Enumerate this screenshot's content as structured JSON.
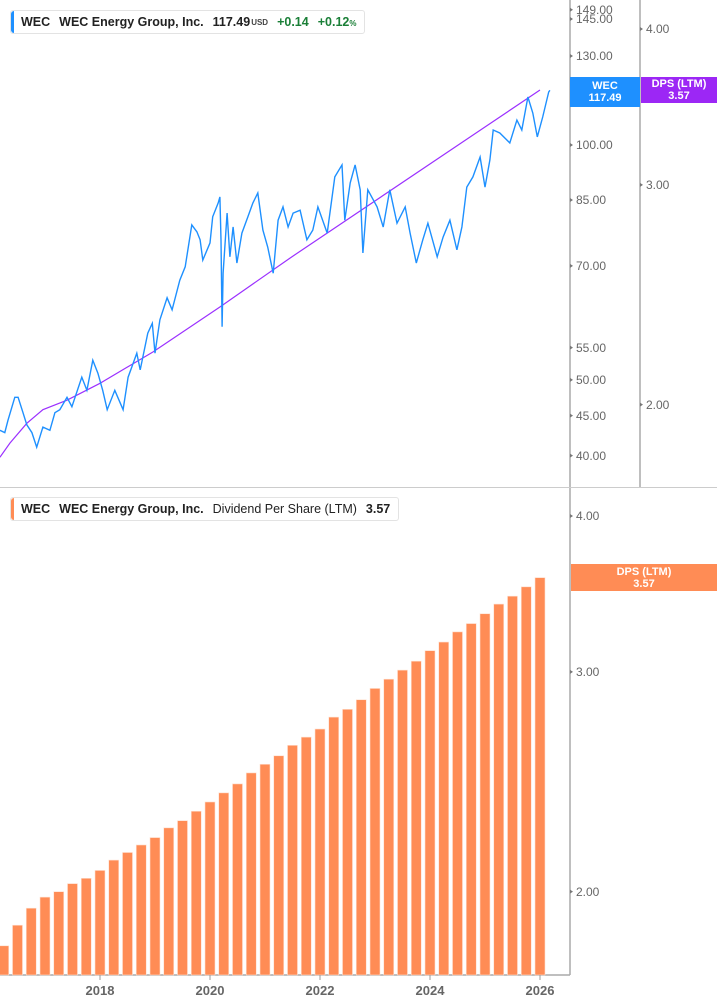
{
  "colors": {
    "price": "#1e90ff",
    "trend": "#9b30ff",
    "dps_tag": "#9c27f5",
    "bars": "#ff8c55",
    "positive": "#1a7f37"
  },
  "top_legend": {
    "ticker": "WEC",
    "name": "WEC Energy Group, Inc.",
    "price": "117.49",
    "currency": "USD",
    "change": "+0.14",
    "change_pct": "+0.12",
    "pct_sign": "%"
  },
  "bottom_legend": {
    "ticker": "WEC",
    "name": "WEC Energy Group, Inc.",
    "metric": "Dividend Per Share (LTM)",
    "value": "3.57"
  },
  "tags": {
    "price": {
      "label": "WEC",
      "value": "117.49"
    },
    "dps_top": {
      "label": "DPS (LTM)",
      "value": "3.57"
    },
    "dps_bottom": {
      "label": "DPS (LTM)",
      "value": "3.57"
    }
  },
  "chart_data": [
    {
      "type": "line",
      "scale": "log",
      "price_axis_ticks": [
        "149.00",
        "145.00",
        "130.00",
        "100.00",
        "85.00",
        "70.00",
        "55.00",
        "50.00",
        "45.00",
        "40.00"
      ],
      "dps_axis_ticks": [
        "4.00",
        "3.00",
        "2.00"
      ],
      "series": [
        {
          "name": "WEC",
          "points": [
            [
              "2016-03-06",
              43.1
            ],
            [
              "2016-04-08",
              42.8
            ],
            [
              "2016-04-29",
              44.4
            ],
            [
              "2016-06-13",
              47.5
            ],
            [
              "2016-07-05",
              47.5
            ],
            [
              "2016-08-07",
              45.4
            ],
            [
              "2016-09-02",
              43.8
            ],
            [
              "2016-10-05",
              42.8
            ],
            [
              "2016-11-07",
              41.0
            ],
            [
              "2016-12-17",
              43.5
            ],
            [
              "2017-02-03",
              43.1
            ],
            [
              "2017-03-06",
              45.4
            ],
            [
              "2017-04-08",
              45.8
            ],
            [
              "2017-05-25",
              47.5
            ],
            [
              "2017-06-27",
              46.2
            ],
            [
              "2017-09-02",
              50.4
            ],
            [
              "2017-10-05",
              48.5
            ],
            [
              "2017-11-14",
              53.0
            ],
            [
              "2017-12-17",
              51.0
            ],
            [
              "2018-01-19",
              48.5
            ],
            [
              "2018-02-18",
              45.8
            ],
            [
              "2018-04-08",
              48.5
            ],
            [
              "2018-06-02",
              45.8
            ],
            [
              "2018-07-05",
              50.4
            ],
            [
              "2018-09-02",
              54.1
            ],
            [
              "2018-09-24",
              51.5
            ],
            [
              "2018-11-14",
              57.4
            ],
            [
              "2018-12-13",
              59.1
            ],
            [
              "2019-01-01",
              54.1
            ],
            [
              "2019-02-03",
              59.7
            ],
            [
              "2019-03-20",
              63.7
            ],
            [
              "2019-04-23",
              61.5
            ],
            [
              "2019-06-13",
              67.1
            ],
            [
              "2019-07-19",
              69.8
            ],
            [
              "2019-09-02",
              79.0
            ],
            [
              "2019-10-05",
              77.4
            ],
            [
              "2019-10-26",
              75.6
            ],
            [
              "2019-11-14",
              71.2
            ],
            [
              "2020-01-01",
              74.9
            ],
            [
              "2020-01-19",
              80.9
            ],
            [
              "2020-02-25",
              84.3
            ],
            [
              "2020-03-06",
              85.8
            ],
            [
              "2020-03-13",
              75.6
            ],
            [
              "2020-03-20",
              58.5
            ],
            [
              "2020-03-27",
              68.5
            ],
            [
              "2020-04-23",
              81.8
            ],
            [
              "2020-05-11",
              71.9
            ],
            [
              "2020-06-02",
              78.5
            ],
            [
              "2020-06-27",
              70.6
            ],
            [
              "2020-07-30",
              77.1
            ],
            [
              "2020-09-09",
              80.9
            ],
            [
              "2020-10-12",
              84.3
            ],
            [
              "2020-11-14",
              86.8
            ],
            [
              "2020-12-17",
              77.8
            ],
            [
              "2021-01-19",
              74.0
            ],
            [
              "2021-02-25",
              68.5
            ],
            [
              "2021-03-27",
              80.1
            ],
            [
              "2021-04-29",
              83.3
            ],
            [
              "2021-06-02",
              78.5
            ],
            [
              "2021-07-05",
              81.8
            ],
            [
              "2021-08-21",
              82.5
            ],
            [
              "2021-10-05",
              75.6
            ],
            [
              "2021-11-14",
              77.8
            ],
            [
              "2021-12-17",
              83.3
            ],
            [
              "2022-02-18",
              77.1
            ],
            [
              "2022-04-08",
              91.0
            ],
            [
              "2022-05-25",
              94.3
            ],
            [
              "2022-06-13",
              80.1
            ],
            [
              "2022-07-19",
              89.4
            ],
            [
              "2022-08-21",
              94.3
            ],
            [
              "2022-09-24",
              87.6
            ],
            [
              "2022-10-12",
              72.7
            ],
            [
              "2022-11-14",
              87.6
            ],
            [
              "2023-01-15",
              83.3
            ],
            [
              "2023-02-25",
              78.5
            ],
            [
              "2023-04-08",
              87.6
            ],
            [
              "2023-05-25",
              79.4
            ],
            [
              "2023-07-19",
              83.3
            ],
            [
              "2023-08-21",
              77.1
            ],
            [
              "2023-10-01",
              70.6
            ],
            [
              "2023-11-14",
              75.6
            ],
            [
              "2023-12-17",
              79.4
            ],
            [
              "2024-02-18",
              71.9
            ],
            [
              "2024-03-27",
              76.2
            ],
            [
              "2024-05-11",
              80.1
            ],
            [
              "2024-06-27",
              73.4
            ],
            [
              "2024-07-30",
              78.5
            ],
            [
              "2024-09-02",
              88.3
            ],
            [
              "2024-10-12",
              91.0
            ],
            [
              "2024-11-29",
              96.5
            ],
            [
              "2025-01-01",
              88.3
            ],
            [
              "2025-02-03",
              95.7
            ],
            [
              "2025-02-25",
              104.5
            ],
            [
              "2025-04-08",
              103.6
            ],
            [
              "2025-06-13",
              100.6
            ],
            [
              "2025-07-30",
              107.6
            ],
            [
              "2025-09-02",
              104.5
            ],
            [
              "2025-10-12",
              115.2
            ],
            [
              "2025-11-14",
              109.9
            ],
            [
              "2025-12-13",
              102.4
            ],
            [
              "2026-01-19",
              108.6
            ],
            [
              "2026-02-28",
              116.9
            ],
            [
              "2026-03-06",
              117.49
            ]
          ]
        },
        {
          "role": "trend",
          "points": [
            [
              "2016-03-06",
              39.8
            ],
            [
              "2016-05-11",
              41.5
            ],
            [
              "2016-09-02",
              44.0
            ],
            [
              "2016-12-17",
              45.8
            ],
            [
              "2017-05-25",
              47.1
            ],
            [
              "2018-01-01",
              49.5
            ],
            [
              "2018-12-17",
              54.3
            ],
            [
              "2020-03-06",
              62.0
            ],
            [
              "2021-06-13",
              71.6
            ],
            [
              "2026-01-01",
              117.6
            ]
          ]
        }
      ]
    },
    {
      "type": "bar",
      "scale": "log",
      "y_axis_ticks": [
        "4.00",
        "3.00",
        "2.00"
      ],
      "x_tick_labels": [
        "2018",
        "2020",
        "2022",
        "2024",
        "2026"
      ],
      "series": [
        {
          "name": "Dividend Per Share (LTM)",
          "x": [
            "2016-04",
            "2016-07",
            "2016-10",
            "2017-01",
            "2017-04",
            "2017-07",
            "2017-10",
            "2018-01",
            "2018-04",
            "2018-07",
            "2018-10",
            "2019-01",
            "2019-04",
            "2019-07",
            "2019-10",
            "2020-01",
            "2020-04",
            "2020-07",
            "2020-10",
            "2021-01",
            "2021-04",
            "2021-07",
            "2021-10",
            "2022-01",
            "2022-04",
            "2022-07",
            "2022-10",
            "2023-01",
            "2023-04",
            "2023-07",
            "2023-10",
            "2024-01",
            "2024-04",
            "2024-07",
            "2024-10",
            "2025-01",
            "2025-04",
            "2025-07",
            "2025-10",
            "2026-01"
          ],
          "values": [
            1.81,
            1.88,
            1.94,
            1.98,
            2.0,
            2.03,
            2.05,
            2.08,
            2.12,
            2.15,
            2.18,
            2.21,
            2.25,
            2.28,
            2.32,
            2.36,
            2.4,
            2.44,
            2.49,
            2.53,
            2.57,
            2.62,
            2.66,
            2.7,
            2.76,
            2.8,
            2.85,
            2.91,
            2.96,
            3.01,
            3.06,
            3.12,
            3.17,
            3.23,
            3.28,
            3.34,
            3.4,
            3.45,
            3.51,
            3.57
          ]
        }
      ]
    }
  ]
}
